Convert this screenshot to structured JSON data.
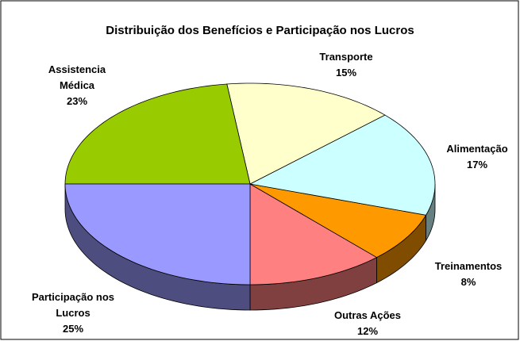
{
  "chart_data": {
    "type": "pie",
    "title": "Distribuição dos Benefícios e Participação nos Lucros",
    "categories": [
      "Outras Ações",
      "Treinamentos",
      "Alimentação",
      "Transporte",
      "Assistencia Médica",
      "Participação nos Lucros"
    ],
    "values": [
      12,
      8,
      17,
      15,
      23,
      25
    ],
    "value_labels": [
      "12%",
      "8%",
      "17%",
      "15%",
      "23%",
      "25%"
    ],
    "colors": [
      "#ff8080",
      "#ff9900",
      "#ccffff",
      "#ffffcc",
      "#99cc00",
      "#9999ff"
    ],
    "three_d": true
  }
}
